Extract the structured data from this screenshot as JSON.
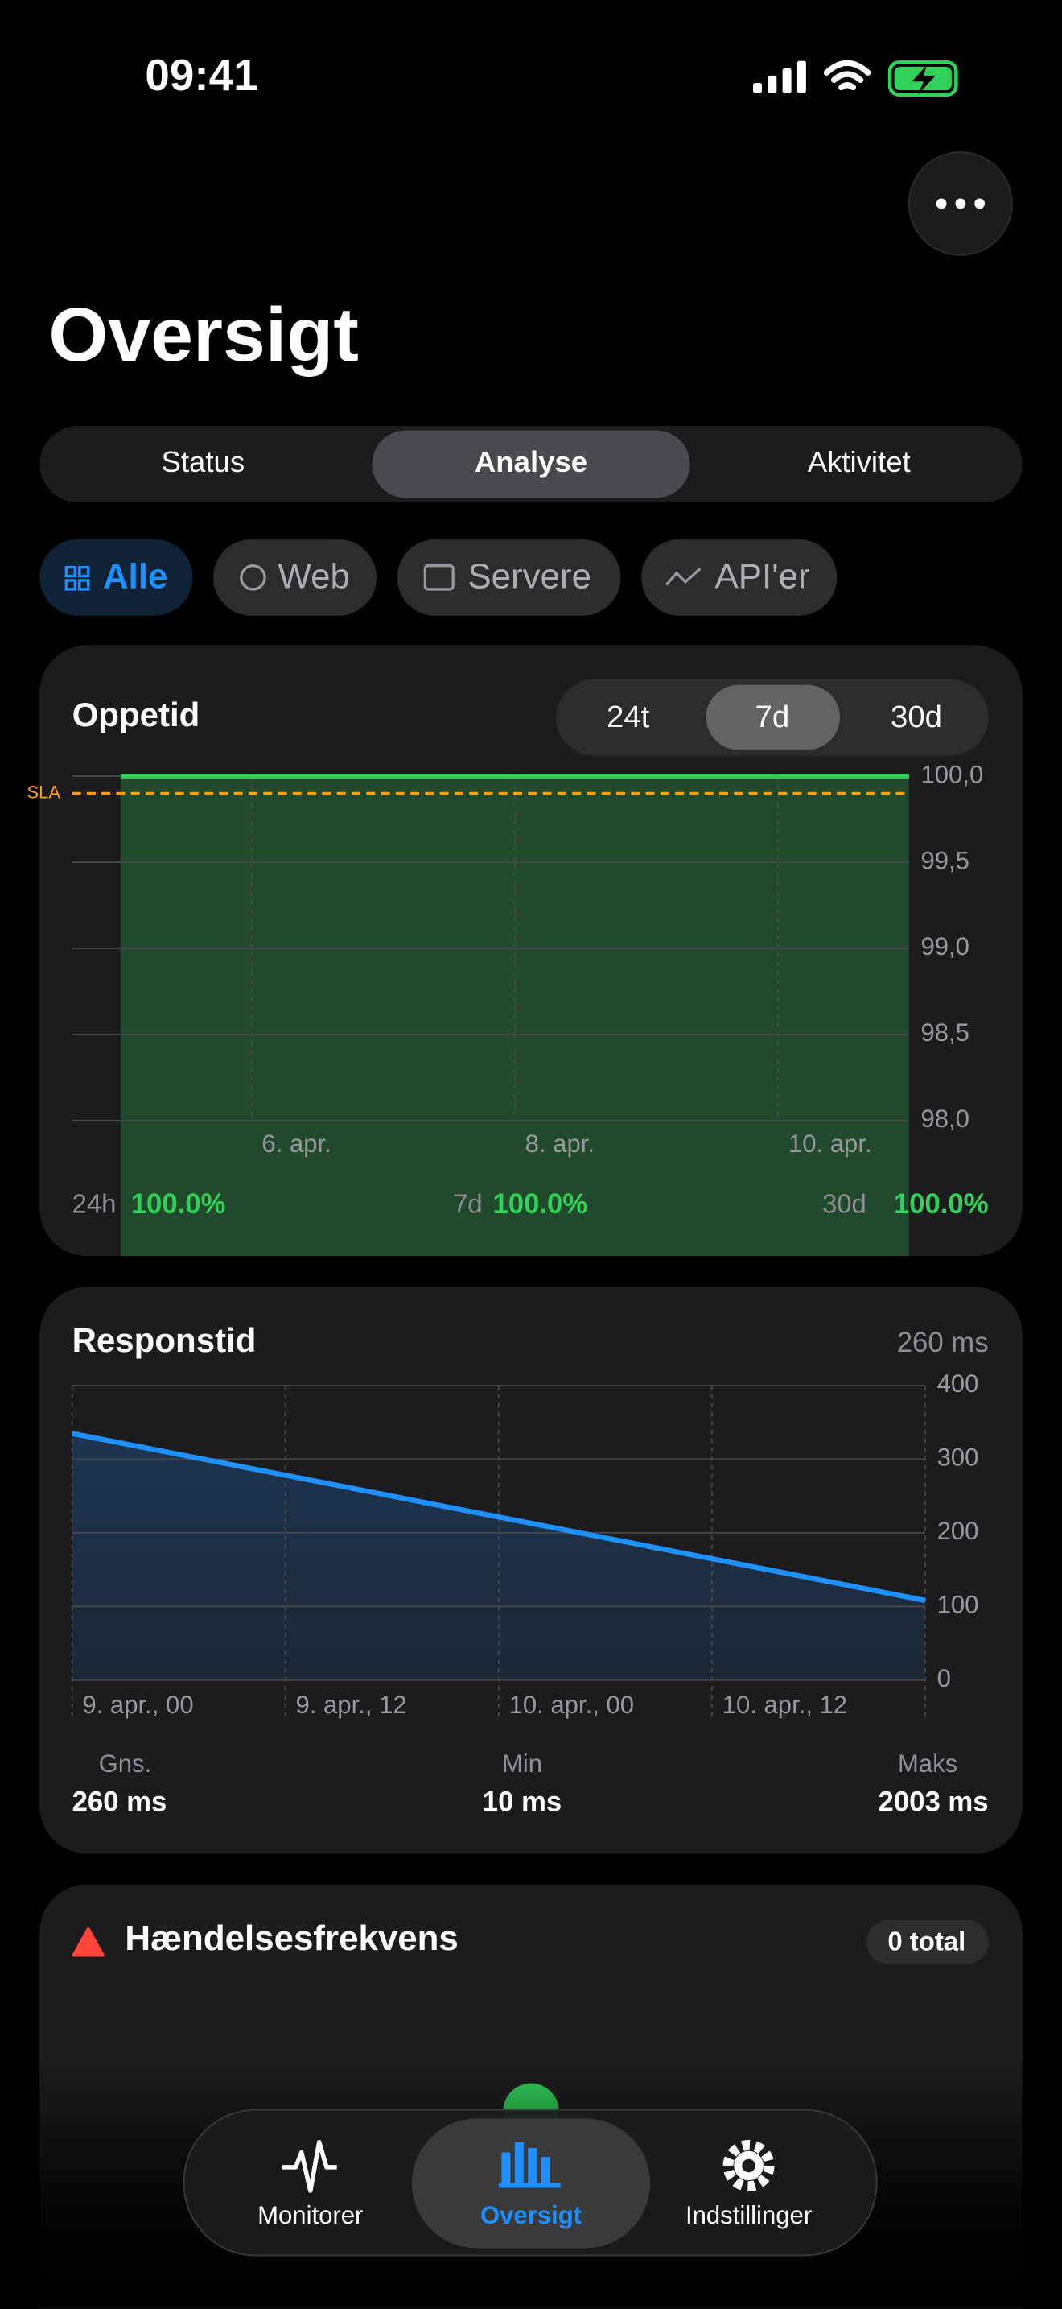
{
  "status_bar": {
    "time": "09:41"
  },
  "header": {
    "title": "Oversigt"
  },
  "segments": [
    "Status",
    "Analyse",
    "Aktivitet"
  ],
  "filters": [
    "Alle",
    "Web",
    "Servere",
    "API'er"
  ],
  "uptime": {
    "title": "Oppetid",
    "ranges": [
      "24t",
      "7d",
      "30d"
    ],
    "chart": {
      "type": "area",
      "ylim": [
        98,
        100
      ],
      "yticks": [
        {
          "value": 100,
          "label": "100,0"
        },
        {
          "value": 99.5,
          "label": "99,5"
        },
        {
          "value": 99,
          "label": "99,0"
        },
        {
          "value": 98.5,
          "label": "98,5"
        },
        {
          "value": 98,
          "label": "98,0"
        }
      ],
      "x_labels": [
        "6. apr.",
        "8. apr.",
        "10. apr."
      ],
      "values": [
        100,
        100
      ],
      "color": "#30d158",
      "sla": {
        "label": "SLA",
        "value": 99.9,
        "color": "#ff9f0a"
      }
    },
    "summary": [
      {
        "label": "24h",
        "value": "100.0%"
      },
      {
        "label": "7d",
        "value": "100.0%"
      },
      {
        "label": "30d",
        "value": "100.0%"
      }
    ]
  },
  "response": {
    "title": "Responstid",
    "current": "260 ms",
    "chart": {
      "type": "line",
      "ylim": [
        0,
        400
      ],
      "yticks": [
        0,
        100,
        200,
        300,
        400
      ],
      "x_labels": [
        "9. apr., 00",
        "9. apr., 12",
        "10. apr., 00",
        "10. apr., 12"
      ],
      "values": [
        335,
        108
      ],
      "color": "#1e90ff"
    },
    "stats": [
      {
        "label": "Gns.",
        "value": "260 ms"
      },
      {
        "label": "Min",
        "value": "10 ms"
      },
      {
        "label": "Maks",
        "value": "2003 ms"
      }
    ]
  },
  "incidents": {
    "title": "Hændelsesfrekvens",
    "badge": "0 total"
  },
  "tab_bar": [
    "Monitorer",
    "Oversigt",
    "Indstillinger"
  ]
}
